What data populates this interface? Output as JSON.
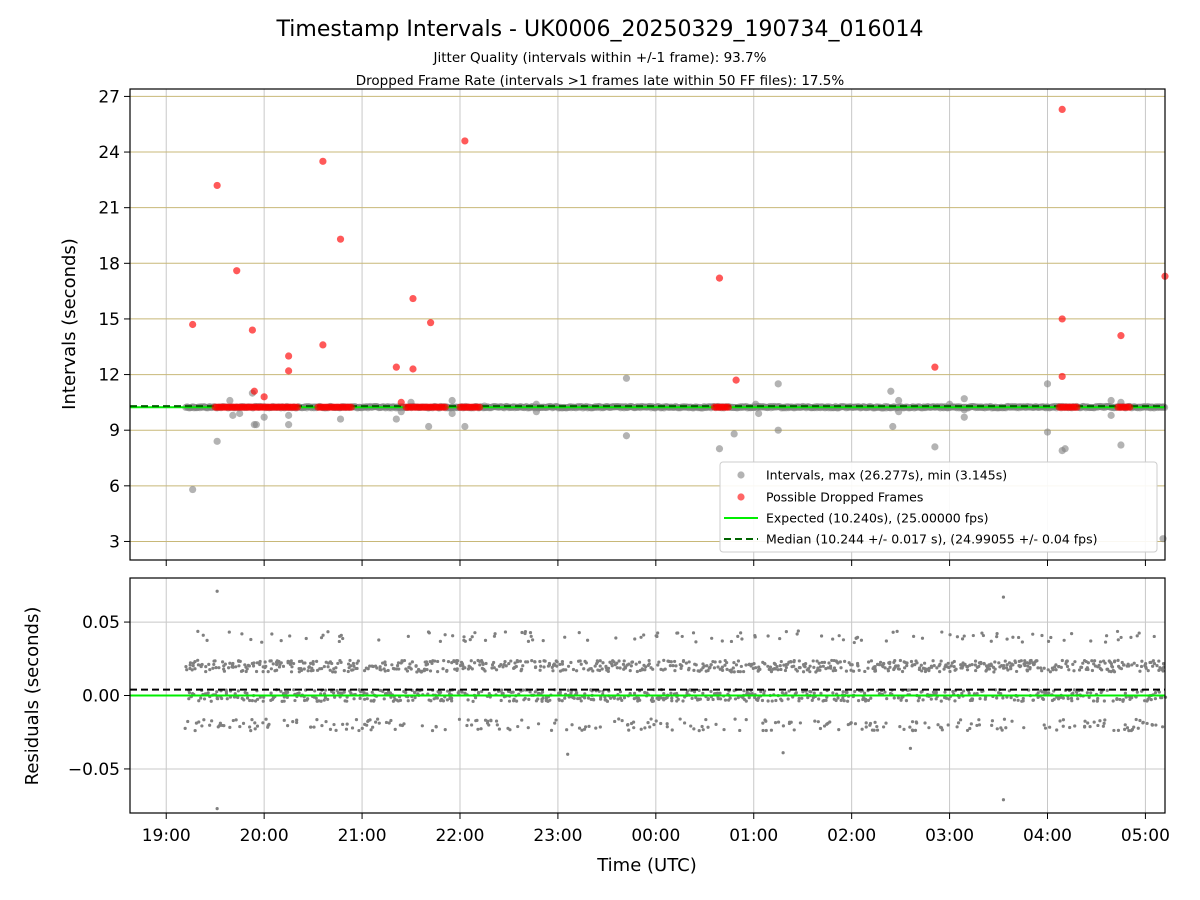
{
  "chart_data": [
    {
      "type": "scatter",
      "title": "Timestamp Intervals - UK0006_20250329_190734_016014",
      "subtitle_lines": [
        "Jitter Quality (intervals within +/-1 frame): 93.7%",
        "Dropped Frame Rate (intervals >1 frames late within 50 FF files): 17.5%"
      ],
      "ylabel": "Intervals (seconds)",
      "xlim_hours": [
        18.63,
        29.2
      ],
      "ylim": [
        2.0,
        27.4
      ],
      "yticks": [
        3,
        6,
        9,
        12,
        15,
        18,
        21,
        24,
        27
      ],
      "grid": true,
      "legend_position": "lower right",
      "colors": {
        "intervals": "#808080",
        "dropped": "#ff0000",
        "expected": "#00ee00",
        "median": "#006400",
        "hgrid": "#c8b878",
        "vgrid": "#c8c8c8"
      },
      "series": [
        {
          "name": "Intervals, max (26.277s), min (3.145s)",
          "kind": "scatter",
          "baseline_range_hours": [
            19.2,
            29.2
          ],
          "baseline_value": 10.24,
          "outliers": [
            [
              19.27,
              5.8
            ],
            [
              19.52,
              8.4
            ],
            [
              19.65,
              10.6
            ],
            [
              19.68,
              9.8
            ],
            [
              19.75,
              9.9
            ],
            [
              19.88,
              11.0
            ],
            [
              19.9,
              9.3
            ],
            [
              19.92,
              9.3
            ],
            [
              20.0,
              9.7
            ],
            [
              20.25,
              9.3
            ],
            [
              20.25,
              9.8
            ],
            [
              20.78,
              9.6
            ],
            [
              21.35,
              9.6
            ],
            [
              21.4,
              10.0
            ],
            [
              21.5,
              10.5
            ],
            [
              21.68,
              9.2
            ],
            [
              21.92,
              10.6
            ],
            [
              21.92,
              9.9
            ],
            [
              22.05,
              9.2
            ],
            [
              22.25,
              10.3
            ],
            [
              22.78,
              10.0
            ],
            [
              22.78,
              10.4
            ],
            [
              23.7,
              11.8
            ],
            [
              23.7,
              8.7
            ],
            [
              24.65,
              8.0
            ],
            [
              24.8,
              8.8
            ],
            [
              25.02,
              10.4
            ],
            [
              25.05,
              9.9
            ],
            [
              25.25,
              11.5
            ],
            [
              25.25,
              9.0
            ],
            [
              26.4,
              11.1
            ],
            [
              26.42,
              9.2
            ],
            [
              26.48,
              10.6
            ],
            [
              26.48,
              10.0
            ],
            [
              26.85,
              8.1
            ],
            [
              27.15,
              10.7
            ],
            [
              27.15,
              9.7
            ],
            [
              27.0,
              10.4
            ],
            [
              27.15,
              10.1
            ],
            [
              28.0,
              11.5
            ],
            [
              28.0,
              8.9
            ],
            [
              28.15,
              7.9
            ],
            [
              28.18,
              8.0
            ],
            [
              28.65,
              10.6
            ],
            [
              28.65,
              9.8
            ],
            [
              28.75,
              8.2
            ],
            [
              28.75,
              10.5
            ],
            [
              29.18,
              3.15
            ]
          ]
        },
        {
          "name": "Possible Dropped Frames",
          "kind": "scatter",
          "points": [
            [
              19.27,
              14.7
            ],
            [
              19.52,
              22.2
            ],
            [
              19.72,
              17.6
            ],
            [
              19.88,
              14.4
            ],
            [
              19.9,
              11.1
            ],
            [
              20.0,
              10.8
            ],
            [
              20.25,
              13.0
            ],
            [
              20.25,
              12.2
            ],
            [
              20.6,
              23.5
            ],
            [
              20.6,
              13.6
            ],
            [
              20.78,
              19.3
            ],
            [
              21.35,
              12.4
            ],
            [
              21.4,
              10.5
            ],
            [
              21.52,
              16.1
            ],
            [
              21.52,
              12.3
            ],
            [
              21.7,
              14.8
            ],
            [
              22.05,
              24.6
            ],
            [
              24.65,
              17.2
            ],
            [
              24.82,
              11.7
            ],
            [
              26.85,
              12.4
            ],
            [
              28.15,
              26.3
            ],
            [
              28.15,
              15.0
            ],
            [
              28.15,
              11.9
            ],
            [
              28.75,
              14.1
            ],
            [
              29.2,
              17.3
            ]
          ],
          "clusters_at_10_24": [
            [
              19.5,
              20.35
            ],
            [
              20.55,
              20.9
            ],
            [
              21.45,
              21.85
            ],
            [
              22.0,
              22.2
            ],
            [
              24.6,
              24.75
            ],
            [
              28.12,
              28.3
            ],
            [
              28.72,
              28.85
            ]
          ]
        },
        {
          "name": "Expected (10.240s), (25.00000 fps)",
          "kind": "line",
          "value": 10.24
        },
        {
          "name": "Median (10.244 +/- 0.017 s), (24.99055 +/- 0.04 fps)",
          "kind": "dashed-line",
          "value": 10.244
        }
      ]
    },
    {
      "type": "scatter",
      "ylabel": "Residuals (seconds)",
      "xlabel": "Time (UTC)",
      "xlim_hours": [
        18.63,
        29.2
      ],
      "ylim": [
        -0.08,
        0.08
      ],
      "yticks": [
        0.05,
        0.0,
        -0.05
      ],
      "ytick_labels": [
        "0.05",
        "0.00",
        "−0.05"
      ],
      "grid": true,
      "residual_bands": [
        0.02,
        0.0,
        -0.02,
        0.04
      ],
      "extreme_points": [
        [
          19.52,
          0.071
        ],
        [
          19.52,
          -0.077
        ],
        [
          23.1,
          -0.04
        ],
        [
          25.3,
          -0.039
        ],
        [
          26.6,
          -0.036
        ],
        [
          27.55,
          0.067
        ],
        [
          27.55,
          -0.071
        ]
      ],
      "series": [
        {
          "name": "Residuals",
          "kind": "scatter"
        },
        {
          "name": "Expected",
          "kind": "line",
          "value": 0.0
        },
        {
          "name": "Median",
          "kind": "dashed-line",
          "value": 0.004
        }
      ]
    }
  ],
  "x_axis": {
    "tick_hours": [
      19,
      20,
      21,
      22,
      23,
      24,
      25,
      26,
      27,
      28,
      29
    ],
    "tick_labels": [
      "19:00",
      "20:00",
      "21:00",
      "22:00",
      "23:00",
      "00:00",
      "01:00",
      "02:00",
      "03:00",
      "04:00",
      "05:00"
    ]
  }
}
